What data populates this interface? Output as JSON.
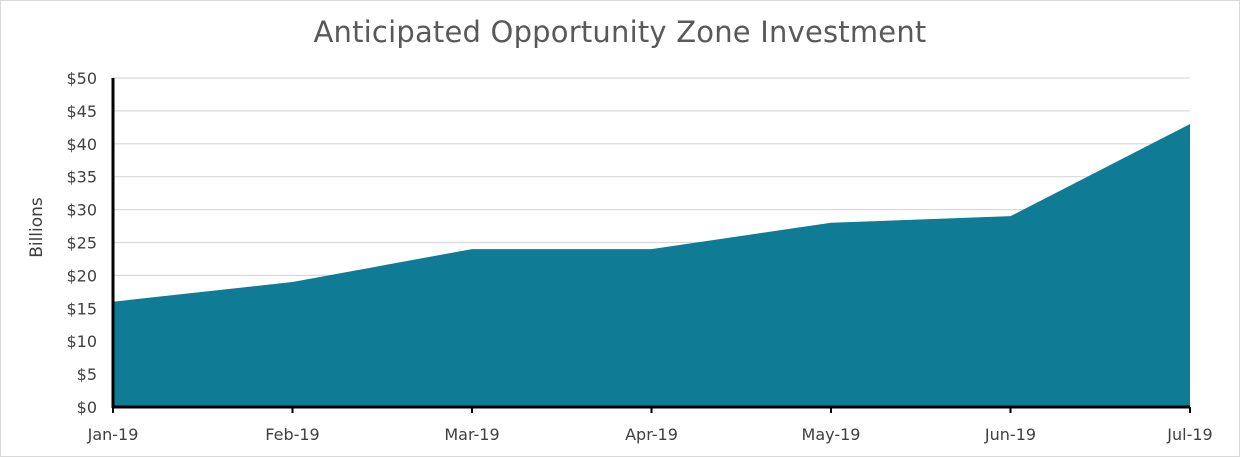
{
  "chart_data": {
    "type": "area",
    "title": "Anticipated Opportunity Zone Investment",
    "xlabel": "",
    "ylabel": "Billions",
    "categories": [
      "Jan-19",
      "Feb-19",
      "Mar-19",
      "Apr-19",
      "May-19",
      "Jun-19",
      "Jul-19"
    ],
    "values": [
      16,
      19,
      24,
      24,
      28,
      29,
      43
    ],
    "ylim": [
      0,
      50
    ],
    "ytick_step": 5,
    "ytick_labels": [
      "$0",
      "$5",
      "$10",
      "$15",
      "$20",
      "$25",
      "$30",
      "$35",
      "$40",
      "$45",
      "$50"
    ],
    "grid": "horizontal",
    "legend": "none",
    "colors": {
      "fill": "#0f7b94",
      "grid": "#d9d9d9",
      "axis": "#000000",
      "text": "#404040",
      "title": "#595959"
    }
  }
}
